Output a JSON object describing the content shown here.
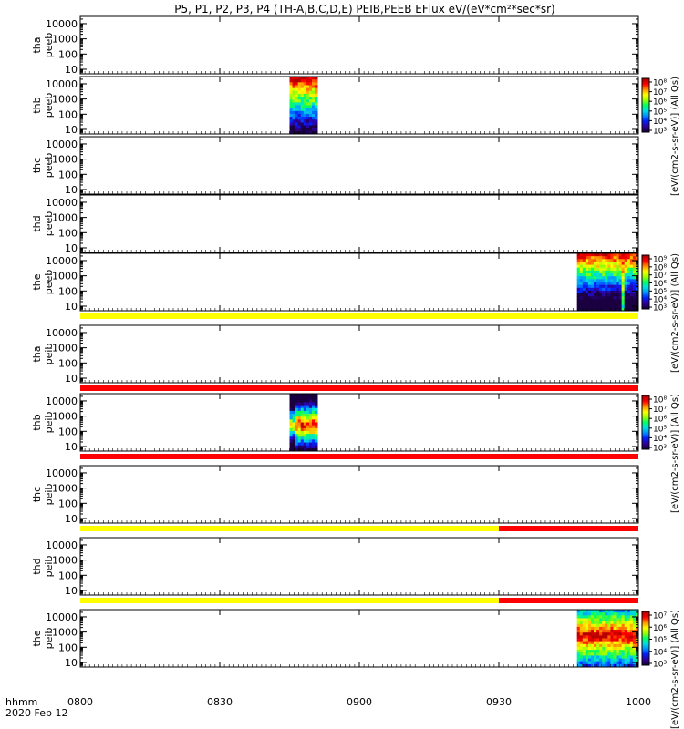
{
  "title": "P5, P1, P2, P3, P4 (TH-A,B,C,D,E) PEIB,PEEB EFlux eV/(eV*cm²*sec*sr)",
  "footer": {
    "axis_name": "hhmm",
    "date": "2020 Feb 12"
  },
  "colors": {
    "flag_yellow": "#ffff00",
    "flag_red": "#ff0000",
    "spectrogram": [
      "#1a0040",
      "#3000a0",
      "#0020ff",
      "#0090ff",
      "#00e0e0",
      "#00ff60",
      "#a0ff00",
      "#ffff00",
      "#ff9000",
      "#ff0000",
      "#b00000"
    ]
  },
  "chart_data": {
    "type": "heatmap",
    "x_tick_labels": [
      "0800",
      "0830",
      "0900",
      "0930",
      "1000"
    ],
    "x_ticks_hours": [
      8.0,
      8.5,
      9.0,
      9.5,
      10.0
    ],
    "xlim_hours": [
      8.0,
      10.0
    ],
    "y_tick_labels": [
      "10",
      "100",
      "1000",
      "10000"
    ],
    "y_ticks": [
      10,
      100,
      1000,
      10000
    ],
    "ylim": [
      5,
      30000
    ],
    "y_scale": "log",
    "panels": [
      {
        "label_top": "tha",
        "label_bottom": "peeb",
        "data_segments": [],
        "colorbar": null,
        "flag_bar": null
      },
      {
        "label_top": "thb",
        "label_bottom": "peeb",
        "data_segments": [
          {
            "start": "0845",
            "end": "0851",
            "t0": 8.75,
            "t1": 8.85,
            "profile": "hot_low"
          }
        ],
        "colorbar": {
          "tick_labels": [
            "10⁸",
            "10⁷",
            "10⁶",
            "10⁵",
            "10⁴",
            "10³"
          ],
          "title": "[eV/(cm2-s-sr-eV)] (All Qs)"
        },
        "flag_bar": null
      },
      {
        "label_top": "thc",
        "label_bottom": "peeb",
        "data_segments": [],
        "colorbar": null,
        "flag_bar": null
      },
      {
        "label_top": "thd",
        "label_bottom": "peeb",
        "data_segments": [],
        "colorbar": null,
        "flag_bar": null
      },
      {
        "label_top": "the",
        "label_bottom": "peeb",
        "data_segments": [
          {
            "start": "0947",
            "end": "1000",
            "t0": 9.78,
            "t1": 10.0,
            "profile": "hot_low_spike"
          }
        ],
        "colorbar": {
          "tick_labels": [
            "10⁹",
            "10⁸",
            "10⁷",
            "10⁶",
            "10⁵",
            "10⁴",
            "10³"
          ],
          "title": "[eV/(cm2-s-sr-eV)] (All Qs)"
        },
        "flag_bar": [
          {
            "t0": 8.0,
            "t1": 10.0,
            "color": "yellow"
          }
        ]
      },
      {
        "label_top": "tha",
        "label_bottom": "peib",
        "data_segments": [],
        "colorbar": null,
        "flag_bar": [
          {
            "t0": 8.0,
            "t1": 10.0,
            "color": "red"
          }
        ]
      },
      {
        "label_top": "thb",
        "label_bottom": "peib",
        "data_segments": [
          {
            "start": "0845",
            "end": "0851",
            "t0": 8.75,
            "t1": 8.85,
            "profile": "ion_mid"
          }
        ],
        "colorbar": {
          "tick_labels": [
            "10⁸",
            "10⁷",
            "10⁶",
            "10⁵",
            "10⁴",
            "10³"
          ],
          "title": "[eV/(cm2-s-sr-eV)] (All Qs)"
        },
        "flag_bar": [
          {
            "t0": 8.0,
            "t1": 10.0,
            "color": "red"
          }
        ]
      },
      {
        "label_top": "thc",
        "label_bottom": "peib",
        "data_segments": [],
        "colorbar": null,
        "flag_bar": [
          {
            "t0": 8.0,
            "t1": 9.5,
            "color": "yellow"
          },
          {
            "t0": 9.5,
            "t1": 10.0,
            "color": "red"
          }
        ]
      },
      {
        "label_top": "thd",
        "label_bottom": "peib",
        "data_segments": [],
        "colorbar": null,
        "flag_bar": [
          {
            "t0": 8.0,
            "t1": 9.5,
            "color": "yellow"
          },
          {
            "t0": 9.5,
            "t1": 10.0,
            "color": "red"
          }
        ]
      },
      {
        "label_top": "the",
        "label_bottom": "peib",
        "data_segments": [
          {
            "start": "0947",
            "end": "1000",
            "t0": 9.78,
            "t1": 10.0,
            "profile": "ion_broad"
          }
        ],
        "colorbar": {
          "tick_labels": [
            "10⁷",
            "10⁶",
            "10⁵",
            "10⁴",
            "10³"
          ],
          "title": "[eV/(cm2-s-sr-eV)] (All Qs)"
        },
        "flag_bar": null
      }
    ]
  }
}
